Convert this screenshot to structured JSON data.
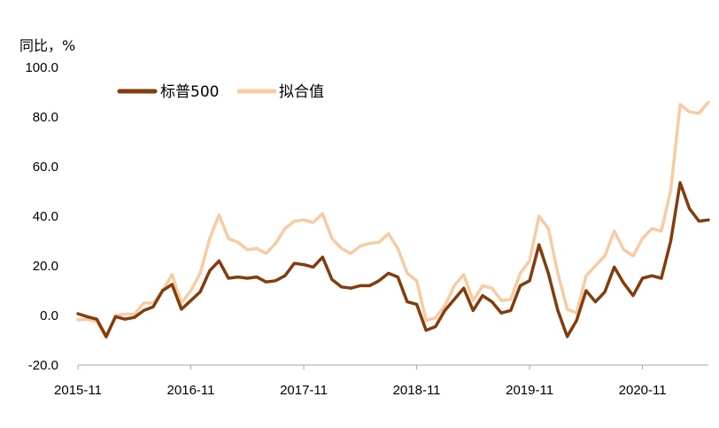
{
  "chart_data": {
    "type": "line",
    "ylabel": "同比，%",
    "ylim": [
      -20,
      100
    ],
    "y_ticks": [
      "-20.0",
      "0.0",
      "20.0",
      "40.0",
      "60.0",
      "80.0",
      "100.0"
    ],
    "x_ticks": [
      "2015-11",
      "2016-11",
      "2017-11",
      "2018-11",
      "2019-11",
      "2020-11"
    ],
    "x_tick_index": [
      0,
      12,
      24,
      36,
      48,
      60
    ],
    "grid": false,
    "legend": "top-left",
    "series": [
      {
        "name": "标普500",
        "color": "#843c0c",
        "values": [
          0.7,
          -0.5,
          -1.5,
          -8.5,
          -0.5,
          -1.5,
          -0.8,
          2,
          3.5,
          10,
          12.5,
          2.5,
          6,
          9.5,
          18,
          22,
          15,
          15.5,
          15,
          15.5,
          13.5,
          14,
          16,
          21,
          20.5,
          19.5,
          23.5,
          14.5,
          11.5,
          11,
          12,
          12,
          14,
          17,
          15.5,
          5.5,
          4.5,
          -6,
          -4.5,
          2,
          6.5,
          11,
          2,
          8,
          5.5,
          1,
          2,
          12,
          14,
          28.5,
          17,
          2,
          -8.5,
          -2,
          10,
          5.5,
          9.5,
          19.5,
          13,
          8,
          15,
          16,
          15,
          30,
          53.5,
          43,
          38,
          38.5
        ]
      },
      {
        "name": "拟合值",
        "color": "#f8cba2",
        "values": [
          -1.8,
          -1.5,
          -2.5,
          -9,
          0,
          0.5,
          0.5,
          5,
          5,
          10,
          16.5,
          5,
          10,
          17,
          31,
          40.5,
          31,
          29.5,
          26.5,
          27,
          25,
          29,
          35,
          38,
          38.5,
          37.5,
          41,
          31,
          27,
          25,
          28,
          29,
          29.5,
          33,
          27,
          17,
          14,
          -2,
          -1,
          4,
          12,
          16.5,
          6,
          12,
          11,
          6,
          6.5,
          17,
          22,
          40,
          35,
          17,
          2.5,
          1,
          16,
          20,
          24,
          34,
          26.5,
          24,
          31,
          35,
          34,
          50.5,
          85,
          82,
          81.5,
          86
        ]
      }
    ]
  }
}
